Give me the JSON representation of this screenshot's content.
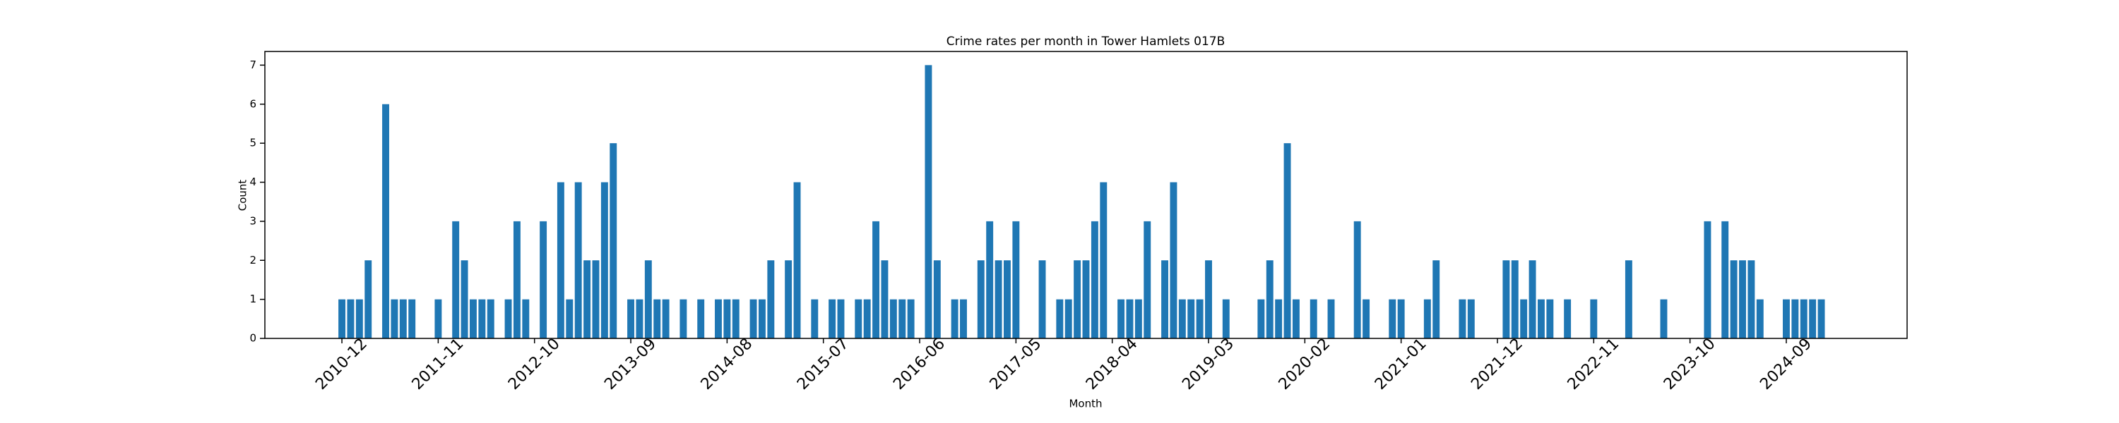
{
  "chart_data": {
    "type": "bar",
    "title": "Crime rates per month in Tower Hamlets 017B",
    "xlabel": "Month",
    "ylabel": "Count",
    "color": "#1f77b4",
    "categories": [
      "2010-12",
      null,
      null,
      null,
      null,
      null,
      null,
      null,
      null,
      null,
      null,
      "2011-11",
      null,
      null,
      null,
      null,
      null,
      null,
      null,
      null,
      null,
      null,
      "2012-10",
      null,
      null,
      null,
      null,
      null,
      null,
      null,
      null,
      null,
      null,
      "2013-09",
      null,
      null,
      null,
      null,
      null,
      null,
      null,
      null,
      null,
      null,
      "2014-08",
      null,
      null,
      null,
      null,
      null,
      null,
      null,
      null,
      null,
      null,
      "2015-07",
      null,
      null,
      null,
      null,
      null,
      null,
      null,
      null,
      null,
      null,
      "2016-06",
      null,
      null,
      null,
      null,
      null,
      null,
      null,
      null,
      null,
      null,
      "2017-05",
      null,
      null,
      null,
      null,
      null,
      null,
      null,
      null,
      null,
      null,
      "2018-04",
      null,
      null,
      null,
      null,
      null,
      null,
      null,
      null,
      null,
      null,
      "2019-03",
      null,
      null,
      null,
      null,
      null,
      null,
      null,
      null,
      null,
      null,
      "2020-02",
      null,
      null,
      null,
      null,
      null,
      null,
      null,
      null,
      null,
      null,
      "2021-01",
      null,
      null,
      null,
      null,
      null,
      null,
      null,
      null,
      null,
      null,
      "2021-12",
      null,
      null,
      null,
      null,
      null,
      null,
      null,
      null,
      null,
      null,
      "2022-11",
      null,
      null,
      null,
      null,
      null,
      null,
      null,
      null,
      null,
      null,
      "2023-10",
      null,
      null,
      null,
      null,
      null,
      null,
      null,
      null,
      null,
      null,
      "2024-09",
      null,
      null,
      null,
      null
    ],
    "values": [
      1,
      1,
      1,
      2,
      0,
      6,
      1,
      1,
      1,
      0,
      0,
      1,
      0,
      3,
      2,
      1,
      1,
      1,
      0,
      1,
      3,
      1,
      0,
      3,
      0,
      4,
      1,
      4,
      2,
      2,
      4,
      5,
      0,
      1,
      1,
      2,
      1,
      1,
      0,
      1,
      0,
      1,
      0,
      1,
      1,
      1,
      0,
      1,
      1,
      2,
      0,
      2,
      4,
      0,
      1,
      0,
      1,
      1,
      0,
      1,
      1,
      3,
      2,
      1,
      1,
      1,
      0,
      7,
      2,
      0,
      1,
      1,
      0,
      2,
      3,
      2,
      2,
      3,
      0,
      0,
      2,
      0,
      1,
      1,
      2,
      2,
      3,
      4,
      0,
      1,
      1,
      1,
      3,
      0,
      2,
      4,
      1,
      1,
      1,
      2,
      0,
      1,
      0,
      0,
      0,
      1,
      2,
      1,
      5,
      1,
      0,
      1,
      0,
      1,
      0,
      0,
      3,
      1,
      0,
      0,
      1,
      1,
      0,
      0,
      1,
      2,
      0,
      0,
      1,
      1,
      0,
      0,
      0,
      2,
      2,
      1,
      2,
      1,
      1,
      0,
      1,
      0,
      0,
      1,
      0,
      0,
      0,
      2,
      0,
      0,
      0,
      1,
      0,
      0,
      0,
      0,
      3,
      0,
      3,
      2,
      2,
      2,
      1,
      0,
      0,
      1,
      1,
      1,
      1,
      1
    ],
    "ylim": [
      0,
      7.35
    ],
    "yticks": [
      0,
      1,
      2,
      3,
      4,
      5,
      6,
      7
    ],
    "grid": false
  }
}
